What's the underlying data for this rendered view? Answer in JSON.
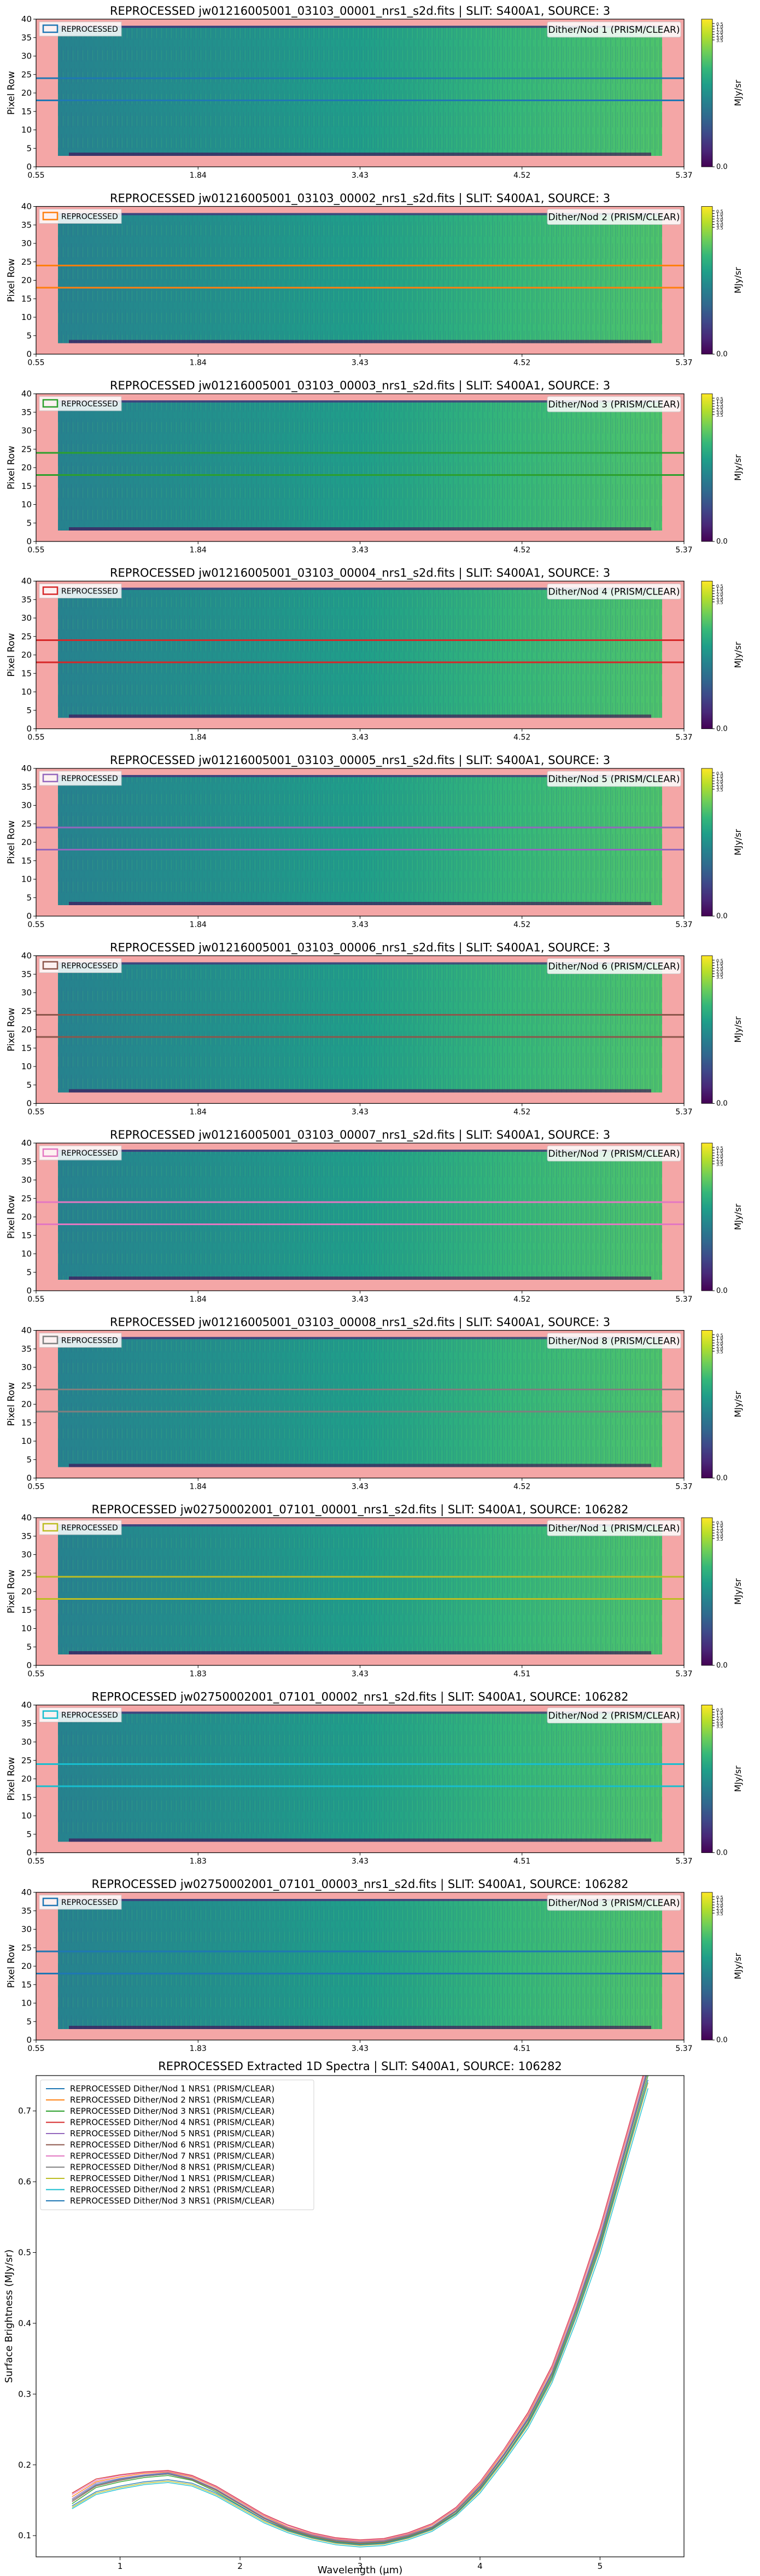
{
  "colormap": {
    "name": "viridis",
    "stops": [
      "#440154",
      "#482878",
      "#3e4989",
      "#31688e",
      "#26828e",
      "#1f9e89",
      "#35b779",
      "#6ece58",
      "#b5de2b",
      "#fde725"
    ],
    "cbar_label": "MJy/sr",
    "cbar_ticks": [
      "0.0",
      "0.5",
      "1.0",
      "1.5",
      "2.0",
      "2.5",
      "3.0",
      "3.5"
    ],
    "mask_color": "#f4a6a6"
  },
  "panel_y_axis": {
    "label": "Pixel Row",
    "ticks": [
      "0",
      "5",
      "10",
      "15",
      "20",
      "25",
      "30",
      "35",
      "40"
    ]
  },
  "panels": [
    {
      "title": "REPROCESSED jw01216005001_03103_00001_nrs1_s2d.fits | SLIT: S400A1, SOURCE: 3",
      "legend": "REPROCESSED",
      "annotation": "Dither/Nod 1 (PRISM/CLEAR)",
      "line_color": "#1f77b4",
      "xticks": [
        "0.55",
        "1.84",
        "3.43",
        "4.52",
        "5.37"
      ]
    },
    {
      "title": "REPROCESSED jw01216005001_03103_00002_nrs1_s2d.fits | SLIT: S400A1, SOURCE: 3",
      "legend": "REPROCESSED",
      "annotation": "Dither/Nod 2 (PRISM/CLEAR)",
      "line_color": "#ff7f0e",
      "xticks": [
        "0.55",
        "1.84",
        "3.43",
        "4.52",
        "5.37"
      ]
    },
    {
      "title": "REPROCESSED jw01216005001_03103_00003_nrs1_s2d.fits | SLIT: S400A1, SOURCE: 3",
      "legend": "REPROCESSED",
      "annotation": "Dither/Nod 3 (PRISM/CLEAR)",
      "line_color": "#2ca02c",
      "xticks": [
        "0.55",
        "1.84",
        "3.43",
        "4.52",
        "5.37"
      ]
    },
    {
      "title": "REPROCESSED jw01216005001_03103_00004_nrs1_s2d.fits | SLIT: S400A1, SOURCE: 3",
      "legend": "REPROCESSED",
      "annotation": "Dither/Nod 4 (PRISM/CLEAR)",
      "line_color": "#d62728",
      "xticks": [
        "0.55",
        "1.84",
        "3.43",
        "4.52",
        "5.37"
      ]
    },
    {
      "title": "REPROCESSED jw01216005001_03103_00005_nrs1_s2d.fits | SLIT: S400A1, SOURCE: 3",
      "legend": "REPROCESSED",
      "annotation": "Dither/Nod 5 (PRISM/CLEAR)",
      "line_color": "#9467bd",
      "xticks": [
        "0.55",
        "1.84",
        "3.43",
        "4.52",
        "5.37"
      ]
    },
    {
      "title": "REPROCESSED jw01216005001_03103_00006_nrs1_s2d.fits | SLIT: S400A1, SOURCE: 3",
      "legend": "REPROCESSED",
      "annotation": "Dither/Nod 6 (PRISM/CLEAR)",
      "line_color": "#8c564b",
      "xticks": [
        "0.55",
        "1.84",
        "3.43",
        "4.52",
        "5.37"
      ]
    },
    {
      "title": "REPROCESSED jw01216005001_03103_00007_nrs1_s2d.fits | SLIT: S400A1, SOURCE: 3",
      "legend": "REPROCESSED",
      "annotation": "Dither/Nod 7 (PRISM/CLEAR)",
      "line_color": "#e377c2",
      "xticks": [
        "0.55",
        "1.84",
        "3.43",
        "4.52",
        "5.37"
      ]
    },
    {
      "title": "REPROCESSED jw01216005001_03103_00008_nrs1_s2d.fits | SLIT: S400A1, SOURCE: 3",
      "legend": "REPROCESSED",
      "annotation": "Dither/Nod 8 (PRISM/CLEAR)",
      "line_color": "#7f7f7f",
      "xticks": [
        "0.55",
        "1.84",
        "3.43",
        "4.52",
        "5.37"
      ]
    },
    {
      "title": "REPROCESSED jw02750002001_07101_00001_nrs1_s2d.fits | SLIT: S400A1, SOURCE: 106282",
      "legend": "REPROCESSED",
      "annotation": "Dither/Nod 1 (PRISM/CLEAR)",
      "line_color": "#bcbd22",
      "xticks": [
        "0.55",
        "1.83",
        "3.43",
        "4.51",
        "5.37"
      ]
    },
    {
      "title": "REPROCESSED jw02750002001_07101_00002_nrs1_s2d.fits | SLIT: S400A1, SOURCE: 106282",
      "legend": "REPROCESSED",
      "annotation": "Dither/Nod 2 (PRISM/CLEAR)",
      "line_color": "#17becf",
      "xticks": [
        "0.55",
        "1.83",
        "3.43",
        "4.51",
        "5.37"
      ]
    },
    {
      "title": "REPROCESSED jw02750002001_07101_00003_nrs1_s2d.fits | SLIT: S400A1, SOURCE: 106282",
      "legend": "REPROCESSED",
      "annotation": "Dither/Nod 3 (PRISM/CLEAR)",
      "line_color": "#1f77b4",
      "xticks": [
        "0.55",
        "1.83",
        "3.43",
        "4.51",
        "5.37"
      ]
    }
  ],
  "chart_data": {
    "type": "line",
    "title": "REPROCESSED Extracted 1D Spectra | SLIT: S400A1, SOURCE: 106282",
    "xlabel": "Wavelength (μm)",
    "ylabel": "Surface Brightness (MJy/sr)",
    "xlim": [
      0.3,
      5.7
    ],
    "ylim": [
      0.07,
      0.75
    ],
    "xticks": [
      1,
      2,
      3,
      4,
      5
    ],
    "yticks": [
      0.1,
      0.2,
      0.3,
      0.4,
      0.5,
      0.6,
      0.7
    ],
    "legend_position": "top-left",
    "x": [
      0.6,
      0.8,
      1.0,
      1.2,
      1.4,
      1.6,
      1.8,
      2.0,
      2.2,
      2.4,
      2.6,
      2.8,
      3.0,
      3.2,
      3.4,
      3.6,
      3.8,
      4.0,
      4.2,
      4.4,
      4.6,
      4.8,
      5.0,
      5.2,
      5.4
    ],
    "series": [
      {
        "name": "REPROCESSED  Dither/Nod 1 NRS1 (PRISM/CLEAR)",
        "color": "#1f77b4",
        "values": [
          0.15,
          0.172,
          0.18,
          0.185,
          0.188,
          0.18,
          0.165,
          0.145,
          0.125,
          0.11,
          0.1,
          0.093,
          0.09,
          0.092,
          0.1,
          0.112,
          0.135,
          0.17,
          0.215,
          0.265,
          0.33,
          0.42,
          0.52,
          0.64,
          0.76
        ]
      },
      {
        "name": "REPROCESSED  Dither/Nod 2 NRS1 (PRISM/CLEAR)",
        "color": "#ff7f0e",
        "values": [
          0.155,
          0.176,
          0.183,
          0.188,
          0.19,
          0.183,
          0.168,
          0.148,
          0.128,
          0.112,
          0.102,
          0.095,
          0.092,
          0.094,
          0.102,
          0.115,
          0.138,
          0.173,
          0.219,
          0.27,
          0.336,
          0.428,
          0.53,
          0.65,
          0.77
        ]
      },
      {
        "name": "REPROCESSED  Dither/Nod 3 NRS1 (PRISM/CLEAR)",
        "color": "#2ca02c",
        "values": [
          0.145,
          0.168,
          0.176,
          0.182,
          0.185,
          0.178,
          0.162,
          0.142,
          0.122,
          0.108,
          0.098,
          0.091,
          0.088,
          0.09,
          0.098,
          0.11,
          0.132,
          0.166,
          0.21,
          0.26,
          0.325,
          0.414,
          0.512,
          0.63,
          0.75
        ]
      },
      {
        "name": "REPROCESSED  Dither/Nod 4 NRS1 (PRISM/CLEAR)",
        "color": "#d62728",
        "values": [
          0.16,
          0.18,
          0.186,
          0.19,
          0.192,
          0.185,
          0.17,
          0.15,
          0.13,
          0.115,
          0.104,
          0.097,
          0.094,
          0.096,
          0.104,
          0.117,
          0.14,
          0.176,
          0.222,
          0.274,
          0.34,
          0.432,
          0.535,
          0.655,
          0.775
        ]
      },
      {
        "name": "REPROCESSED  Dither/Nod 5 NRS1 (PRISM/CLEAR)",
        "color": "#9467bd",
        "values": [
          0.152,
          0.174,
          0.181,
          0.186,
          0.189,
          0.181,
          0.166,
          0.146,
          0.126,
          0.111,
          0.101,
          0.094,
          0.091,
          0.093,
          0.101,
          0.113,
          0.136,
          0.171,
          0.216,
          0.267,
          0.332,
          0.423,
          0.524,
          0.644,
          0.764
        ]
      },
      {
        "name": "REPROCESSED  Dither/Nod 6 NRS1 (PRISM/CLEAR)",
        "color": "#8c564b",
        "values": [
          0.148,
          0.17,
          0.178,
          0.184,
          0.187,
          0.179,
          0.164,
          0.144,
          0.124,
          0.109,
          0.099,
          0.092,
          0.089,
          0.091,
          0.099,
          0.111,
          0.134,
          0.168,
          0.213,
          0.263,
          0.328,
          0.418,
          0.516,
          0.636,
          0.756
        ]
      },
      {
        "name": "REPROCESSED  Dither/Nod 7 NRS1 (PRISM/CLEAR)",
        "color": "#e377c2",
        "values": [
          0.158,
          0.178,
          0.185,
          0.189,
          0.191,
          0.184,
          0.169,
          0.149,
          0.129,
          0.114,
          0.103,
          0.096,
          0.093,
          0.095,
          0.103,
          0.116,
          0.139,
          0.175,
          0.221,
          0.272,
          0.338,
          0.43,
          0.532,
          0.652,
          0.772
        ]
      },
      {
        "name": "REPROCESSED  Dither/Nod 8 NRS1 (PRISM/CLEAR)",
        "color": "#7f7f7f",
        "values": [
          0.15,
          0.171,
          0.179,
          0.184,
          0.187,
          0.18,
          0.165,
          0.145,
          0.125,
          0.11,
          0.1,
          0.093,
          0.09,
          0.092,
          0.1,
          0.112,
          0.135,
          0.169,
          0.214,
          0.264,
          0.329,
          0.419,
          0.518,
          0.638,
          0.758
        ]
      },
      {
        "name": "REPROCESSED  Dither/Nod 1 NRS1 (PRISM/CLEAR)",
        "color": "#bcbd22",
        "values": [
          0.14,
          0.16,
          0.168,
          0.174,
          0.177,
          0.172,
          0.158,
          0.139,
          0.12,
          0.106,
          0.096,
          0.089,
          0.086,
          0.088,
          0.096,
          0.108,
          0.13,
          0.163,
          0.207,
          0.256,
          0.32,
          0.408,
          0.505,
          0.622,
          0.74
        ]
      },
      {
        "name": "REPROCESSED  Dither/Nod 2 NRS1 (PRISM/CLEAR)",
        "color": "#17becf",
        "values": [
          0.138,
          0.158,
          0.166,
          0.172,
          0.175,
          0.17,
          0.156,
          0.137,
          0.118,
          0.104,
          0.094,
          0.087,
          0.084,
          0.086,
          0.094,
          0.106,
          0.128,
          0.16,
          0.204,
          0.252,
          0.316,
          0.402,
          0.498,
          0.615,
          0.732
        ]
      },
      {
        "name": "REPROCESSED  Dither/Nod 3 NRS1 (PRISM/CLEAR)",
        "color": "#1f77b4",
        "values": [
          0.142,
          0.162,
          0.17,
          0.176,
          0.179,
          0.174,
          0.16,
          0.141,
          0.122,
          0.107,
          0.097,
          0.09,
          0.087,
          0.089,
          0.097,
          0.109,
          0.131,
          0.165,
          0.209,
          0.258,
          0.322,
          0.41,
          0.508,
          0.626,
          0.744
        ]
      }
    ]
  }
}
